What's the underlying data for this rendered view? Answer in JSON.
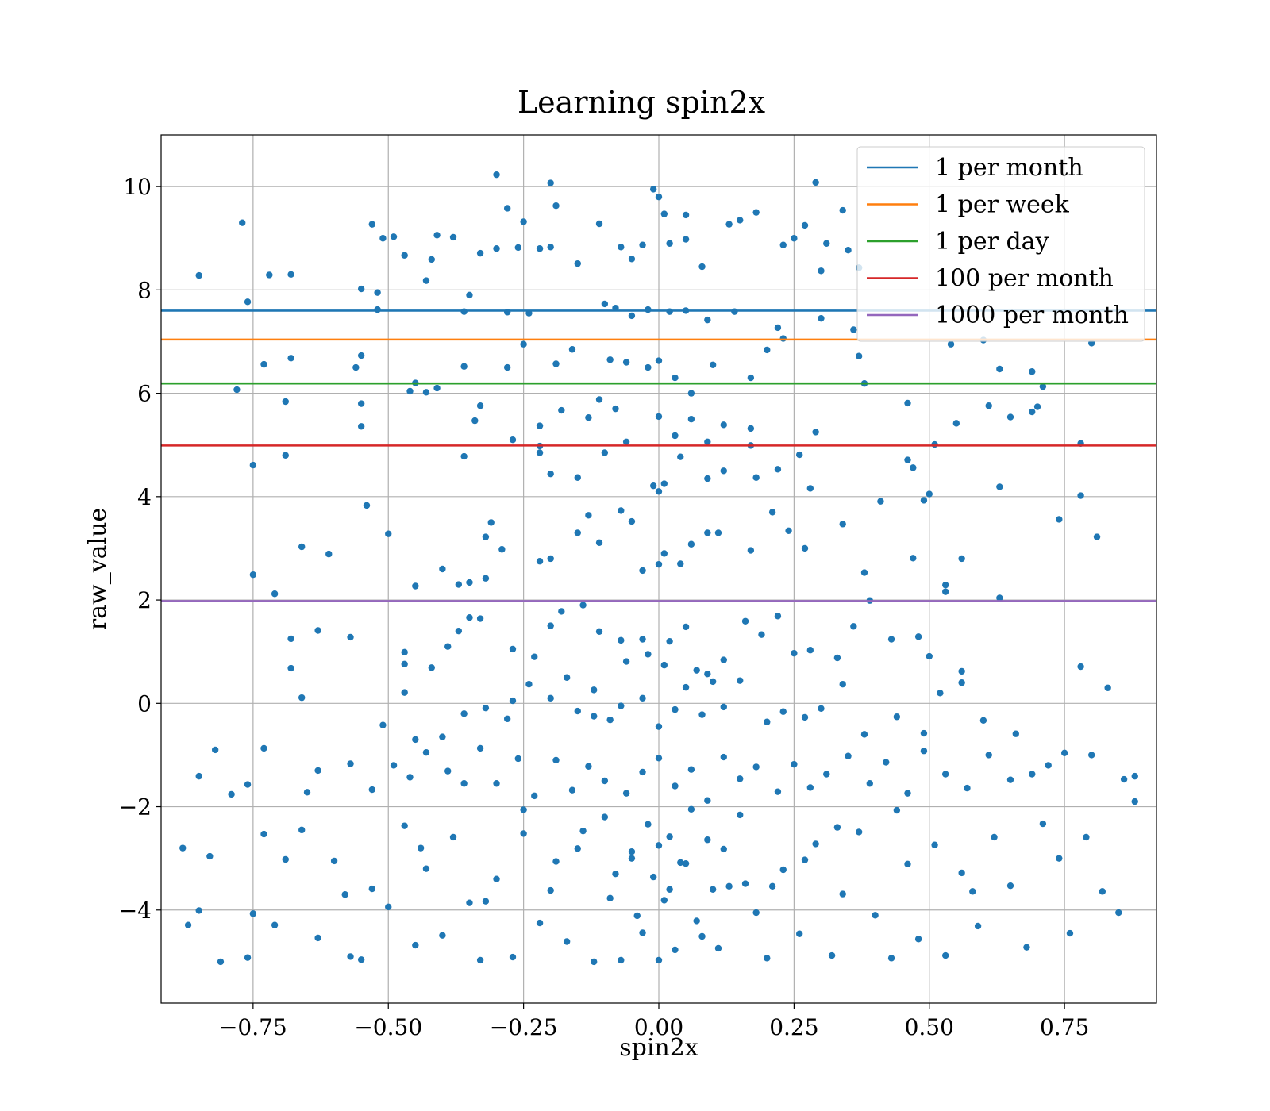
{
  "chart_data": {
    "type": "scatter",
    "title": "Learning spin2x",
    "xlabel": "spin2x",
    "ylabel": "raw_value",
    "xlim": [
      -0.92,
      0.92
    ],
    "ylim": [
      -5.8,
      11.0
    ],
    "grid": true,
    "x_ticks": [
      -0.75,
      -0.5,
      -0.25,
      0.0,
      0.25,
      0.5,
      0.75
    ],
    "x_tick_labels": [
      "−0.75",
      "−0.50",
      "−0.25",
      "0.00",
      "0.25",
      "0.50",
      "0.75"
    ],
    "y_ticks": [
      -4,
      -2,
      0,
      2,
      4,
      6,
      8,
      10
    ],
    "y_tick_labels": [
      "−4",
      "−2",
      "0",
      "2",
      "4",
      "6",
      "8",
      "10"
    ],
    "legend_position": "top-right",
    "marker_color": "#1f77b4",
    "thresholds": [
      {
        "name": "1 per month",
        "y": 7.6,
        "color": "#1f77b4"
      },
      {
        "name": "1 per week",
        "y": 7.04,
        "color": "#ff7f0e"
      },
      {
        "name": "1 per day",
        "y": 6.19,
        "color": "#2ca02c"
      },
      {
        "name": "100 per month",
        "y": 4.99,
        "color": "#d62728"
      },
      {
        "name": "1000 per month",
        "y": 1.98,
        "color": "#9467bd"
      }
    ],
    "points": [
      [
        -0.77,
        9.3
      ],
      [
        -0.76,
        7.77
      ],
      [
        -0.85,
        8.28
      ],
      [
        -0.53,
        9.27
      ],
      [
        -0.51,
        9.0
      ],
      [
        -0.49,
        9.03
      ],
      [
        -0.55,
        8.02
      ],
      [
        -0.52,
        7.95
      ],
      [
        -0.52,
        7.62
      ],
      [
        -0.72,
        8.29
      ],
      [
        -0.68,
        8.3
      ],
      [
        -0.3,
        10.23
      ],
      [
        -0.2,
        10.07
      ],
      [
        -0.19,
        9.63
      ],
      [
        -0.28,
        9.58
      ],
      [
        -0.25,
        9.32
      ],
      [
        -0.41,
        9.06
      ],
      [
        -0.38,
        9.02
      ],
      [
        -0.42,
        8.59
      ],
      [
        -0.47,
        8.67
      ],
      [
        -0.43,
        8.18
      ],
      [
        -0.35,
        7.9
      ],
      [
        -0.36,
        7.58
      ],
      [
        -0.28,
        7.57
      ],
      [
        -0.33,
        8.71
      ],
      [
        -0.3,
        8.8
      ],
      [
        -0.26,
        8.82
      ],
      [
        -0.22,
        8.8
      ],
      [
        -0.2,
        8.83
      ],
      [
        -0.24,
        7.55
      ],
      [
        -0.15,
        8.51
      ],
      [
        -0.11,
        9.28
      ],
      [
        -0.07,
        8.83
      ],
      [
        -0.05,
        8.6
      ],
      [
        -0.03,
        8.87
      ],
      [
        -0.01,
        9.95
      ],
      [
        0.0,
        9.8
      ],
      [
        0.01,
        9.47
      ],
      [
        0.05,
        9.45
      ],
      [
        0.02,
        8.9
      ],
      [
        0.05,
        8.98
      ],
      [
        0.08,
        8.45
      ],
      [
        0.13,
        9.27
      ],
      [
        0.15,
        9.35
      ],
      [
        0.18,
        9.5
      ],
      [
        0.23,
        8.87
      ],
      [
        0.25,
        9.0
      ],
      [
        0.27,
        9.25
      ],
      [
        0.29,
        10.08
      ],
      [
        0.31,
        8.9
      ],
      [
        0.34,
        9.54
      ],
      [
        0.3,
        8.37
      ],
      [
        0.35,
        8.77
      ],
      [
        0.37,
        8.43
      ],
      [
        0.3,
        7.45
      ],
      [
        0.36,
        7.23
      ],
      [
        -0.1,
        7.73
      ],
      [
        -0.08,
        7.65
      ],
      [
        -0.05,
        7.5
      ],
      [
        -0.02,
        7.62
      ],
      [
        0.02,
        7.58
      ],
      [
        0.05,
        7.6
      ],
      [
        0.09,
        7.42
      ],
      [
        0.14,
        7.58
      ],
      [
        -0.68,
        6.68
      ],
      [
        -0.73,
        6.56
      ],
      [
        -0.56,
        6.5
      ],
      [
        -0.55,
        6.73
      ],
      [
        -0.46,
        6.04
      ],
      [
        -0.45,
        6.2
      ],
      [
        -0.43,
        6.02
      ],
      [
        -0.41,
        6.1
      ],
      [
        -0.36,
        6.52
      ],
      [
        -0.28,
        6.5
      ],
      [
        -0.25,
        6.95
      ],
      [
        -0.19,
        6.57
      ],
      [
        -0.16,
        6.85
      ],
      [
        -0.09,
        6.65
      ],
      [
        -0.06,
        6.6
      ],
      [
        -0.02,
        6.5
      ],
      [
        0.0,
        6.63
      ],
      [
        0.03,
        6.3
      ],
      [
        0.06,
        6.0
      ],
      [
        0.1,
        6.55
      ],
      [
        0.17,
        6.3
      ],
      [
        0.2,
        6.84
      ],
      [
        0.23,
        7.06
      ],
      [
        0.22,
        7.27
      ],
      [
        0.37,
        6.72
      ],
      [
        0.38,
        6.19
      ],
      [
        0.6,
        7.03
      ],
      [
        0.63,
        6.47
      ],
      [
        0.69,
        6.42
      ],
      [
        0.71,
        6.13
      ],
      [
        0.8,
        6.97
      ],
      [
        0.54,
        6.95
      ],
      [
        -0.78,
        6.07
      ],
      [
        -0.69,
        5.84
      ],
      [
        -0.55,
        5.8
      ],
      [
        -0.55,
        5.36
      ],
      [
        -0.33,
        5.76
      ],
      [
        -0.34,
        5.47
      ],
      [
        -0.27,
        5.1
      ],
      [
        -0.22,
        5.37
      ],
      [
        -0.18,
        5.67
      ],
      [
        -0.13,
        5.53
      ],
      [
        -0.11,
        5.88
      ],
      [
        -0.08,
        5.7
      ],
      [
        -0.06,
        5.06
      ],
      [
        -0.1,
        4.85
      ],
      [
        0.0,
        5.55
      ],
      [
        0.03,
        5.18
      ],
      [
        0.06,
        5.5
      ],
      [
        0.09,
        5.06
      ],
      [
        0.12,
        5.39
      ],
      [
        0.17,
        5.32
      ],
      [
        0.17,
        4.99
      ],
      [
        0.29,
        5.25
      ],
      [
        0.46,
        5.81
      ],
      [
        0.51,
        5.01
      ],
      [
        0.55,
        5.42
      ],
      [
        0.61,
        5.76
      ],
      [
        0.65,
        5.54
      ],
      [
        0.7,
        5.74
      ],
      [
        0.69,
        5.64
      ],
      [
        0.78,
        5.03
      ],
      [
        -0.75,
        4.61
      ],
      [
        -0.69,
        4.8
      ],
      [
        -0.36,
        4.78
      ],
      [
        -0.22,
        4.98
      ],
      [
        -0.22,
        4.85
      ],
      [
        -0.2,
        4.44
      ],
      [
        -0.15,
        4.37
      ],
      [
        -0.01,
        4.21
      ],
      [
        0.01,
        4.25
      ],
      [
        0.0,
        4.1
      ],
      [
        0.04,
        4.77
      ],
      [
        0.09,
        4.35
      ],
      [
        0.12,
        4.5
      ],
      [
        0.18,
        4.37
      ],
      [
        0.22,
        4.53
      ],
      [
        0.26,
        4.81
      ],
      [
        0.28,
        4.16
      ],
      [
        0.41,
        3.91
      ],
      [
        0.46,
        4.71
      ],
      [
        0.47,
        4.56
      ],
      [
        0.49,
        3.93
      ],
      [
        0.5,
        4.05
      ],
      [
        0.63,
        4.19
      ],
      [
        0.74,
        3.56
      ],
      [
        0.78,
        4.02
      ],
      [
        0.81,
        3.22
      ],
      [
        -0.54,
        3.83
      ],
      [
        -0.5,
        3.28
      ],
      [
        -0.66,
        3.03
      ],
      [
        -0.61,
        2.89
      ],
      [
        -0.75,
        2.49
      ],
      [
        -0.71,
        2.12
      ],
      [
        -0.45,
        2.27
      ],
      [
        -0.4,
        2.6
      ],
      [
        -0.37,
        2.3
      ],
      [
        -0.35,
        2.34
      ],
      [
        -0.32,
        2.42
      ],
      [
        -0.32,
        3.22
      ],
      [
        -0.31,
        3.5
      ],
      [
        -0.29,
        2.98
      ],
      [
        -0.22,
        2.75
      ],
      [
        -0.2,
        2.8
      ],
      [
        -0.15,
        3.3
      ],
      [
        -0.13,
        3.64
      ],
      [
        -0.11,
        3.11
      ],
      [
        -0.07,
        3.73
      ],
      [
        -0.05,
        3.52
      ],
      [
        -0.03,
        2.57
      ],
      [
        0.0,
        2.69
      ],
      [
        0.01,
        2.9
      ],
      [
        0.04,
        2.7
      ],
      [
        0.06,
        3.08
      ],
      [
        0.09,
        3.3
      ],
      [
        0.11,
        3.3
      ],
      [
        0.17,
        2.96
      ],
      [
        0.21,
        3.7
      ],
      [
        0.24,
        3.34
      ],
      [
        0.27,
        3.0
      ],
      [
        0.34,
        3.47
      ],
      [
        0.38,
        2.53
      ],
      [
        0.39,
        1.99
      ],
      [
        0.47,
        2.81
      ],
      [
        0.53,
        2.29
      ],
      [
        0.53,
        2.16
      ],
      [
        0.56,
        2.8
      ],
      [
        0.63,
        2.04
      ],
      [
        -0.68,
        1.25
      ],
      [
        -0.68,
        0.68
      ],
      [
        -0.63,
        1.41
      ],
      [
        -0.57,
        1.28
      ],
      [
        -0.47,
        0.99
      ],
      [
        -0.47,
        0.76
      ],
      [
        -0.47,
        0.21
      ],
      [
        -0.42,
        0.69
      ],
      [
        -0.39,
        1.1
      ],
      [
        -0.37,
        1.4
      ],
      [
        -0.35,
        1.66
      ],
      [
        -0.33,
        1.64
      ],
      [
        -0.27,
        1.05
      ],
      [
        -0.23,
        0.9
      ],
      [
        -0.2,
        1.5
      ],
      [
        -0.18,
        1.78
      ],
      [
        -0.14,
        1.9
      ],
      [
        -0.11,
        1.39
      ],
      [
        -0.07,
        1.22
      ],
      [
        -0.06,
        0.81
      ],
      [
        -0.03,
        1.24
      ],
      [
        -0.02,
        0.95
      ],
      [
        0.01,
        0.74
      ],
      [
        0.02,
        1.2
      ],
      [
        0.05,
        1.48
      ],
      [
        0.07,
        0.64
      ],
      [
        0.09,
        0.57
      ],
      [
        0.12,
        0.84
      ],
      [
        0.16,
        1.59
      ],
      [
        0.19,
        1.33
      ],
      [
        0.22,
        1.69
      ],
      [
        0.25,
        0.97
      ],
      [
        0.28,
        1.03
      ],
      [
        0.33,
        0.88
      ],
      [
        0.36,
        1.49
      ],
      [
        0.43,
        1.24
      ],
      [
        0.48,
        1.29
      ],
      [
        0.5,
        0.91
      ],
      [
        0.56,
        0.62
      ],
      [
        0.56,
        0.4
      ],
      [
        0.78,
        0.71
      ],
      [
        0.83,
        0.3
      ],
      [
        -0.66,
        0.11
      ],
      [
        -0.45,
        -0.7
      ],
      [
        -0.51,
        -0.42
      ],
      [
        -0.4,
        -0.65
      ],
      [
        -0.36,
        -0.2
      ],
      [
        -0.32,
        -0.09
      ],
      [
        -0.28,
        -0.3
      ],
      [
        -0.27,
        0.05
      ],
      [
        -0.24,
        0.37
      ],
      [
        -0.2,
        0.1
      ],
      [
        -0.17,
        0.5
      ],
      [
        -0.15,
        -0.15
      ],
      [
        -0.12,
        0.26
      ],
      [
        -0.09,
        -0.32
      ],
      [
        -0.07,
        -0.05
      ],
      [
        -0.03,
        0.1
      ],
      [
        0.0,
        -0.45
      ],
      [
        0.03,
        -0.12
      ],
      [
        0.05,
        0.31
      ],
      [
        0.08,
        -0.22
      ],
      [
        0.1,
        0.42
      ],
      [
        0.12,
        -0.07
      ],
      [
        0.15,
        0.44
      ],
      [
        0.2,
        -0.36
      ],
      [
        0.23,
        -0.16
      ],
      [
        0.27,
        -0.27
      ],
      [
        0.3,
        -0.1
      ],
      [
        0.34,
        0.37
      ],
      [
        0.38,
        -0.6
      ],
      [
        0.44,
        -0.26
      ],
      [
        0.49,
        -0.58
      ],
      [
        0.52,
        0.2
      ],
      [
        0.6,
        -0.33
      ],
      [
        0.66,
        -0.59
      ],
      [
        -0.82,
        -0.9
      ],
      [
        -0.85,
        -1.41
      ],
      [
        -0.76,
        -1.57
      ],
      [
        -0.73,
        -0.87
      ],
      [
        -0.79,
        -1.76
      ],
      [
        -0.65,
        -1.72
      ],
      [
        -0.63,
        -1.3
      ],
      [
        -0.57,
        -1.17
      ],
      [
        -0.53,
        -1.67
      ],
      [
        -0.49,
        -1.2
      ],
      [
        -0.46,
        -1.43
      ],
      [
        -0.43,
        -0.95
      ],
      [
        -0.39,
        -1.31
      ],
      [
        -0.36,
        -1.55
      ],
      [
        -0.33,
        -0.87
      ],
      [
        -0.3,
        -1.55
      ],
      [
        -0.26,
        -1.07
      ],
      [
        -0.23,
        -1.79
      ],
      [
        -0.19,
        -1.1
      ],
      [
        -0.16,
        -1.68
      ],
      [
        -0.13,
        -1.22
      ],
      [
        -0.1,
        -1.5
      ],
      [
        -0.06,
        -1.74
      ],
      [
        -0.03,
        -1.33
      ],
      [
        0.0,
        -1.06
      ],
      [
        0.03,
        -1.6
      ],
      [
        0.06,
        -1.28
      ],
      [
        0.09,
        -1.88
      ],
      [
        0.12,
        -1.04
      ],
      [
        0.15,
        -1.46
      ],
      [
        0.18,
        -1.23
      ],
      [
        0.22,
        -1.71
      ],
      [
        0.25,
        -1.18
      ],
      [
        0.28,
        -1.63
      ],
      [
        0.31,
        -1.37
      ],
      [
        0.35,
        -1.02
      ],
      [
        0.39,
        -1.55
      ],
      [
        0.42,
        -1.14
      ],
      [
        0.46,
        -1.74
      ],
      [
        0.49,
        -0.92
      ],
      [
        0.53,
        -1.37
      ],
      [
        0.57,
        -1.64
      ],
      [
        0.61,
        -1.0
      ],
      [
        0.65,
        -1.48
      ],
      [
        0.69,
        -1.37
      ],
      [
        0.72,
        -1.2
      ],
      [
        0.75,
        -0.96
      ],
      [
        0.8,
        -1.0
      ],
      [
        0.86,
        -1.47
      ],
      [
        0.88,
        -1.41
      ],
      [
        -0.88,
        -2.8
      ],
      [
        -0.87,
        -4.29
      ],
      [
        -0.85,
        -4.01
      ],
      [
        -0.83,
        -2.96
      ],
      [
        -0.81,
        -5.0
      ],
      [
        -0.76,
        -4.92
      ],
      [
        -0.75,
        -4.07
      ],
      [
        -0.73,
        -2.53
      ],
      [
        -0.71,
        -4.29
      ],
      [
        -0.69,
        -3.02
      ],
      [
        -0.66,
        -2.45
      ],
      [
        -0.63,
        -4.54
      ],
      [
        -0.6,
        -3.05
      ],
      [
        -0.57,
        -4.9
      ],
      [
        -0.55,
        -4.96
      ],
      [
        -0.53,
        -3.59
      ],
      [
        -0.5,
        -3.94
      ],
      [
        -0.47,
        -2.37
      ],
      [
        -0.45,
        -4.68
      ],
      [
        -0.43,
        -3.2
      ],
      [
        -0.4,
        -4.49
      ],
      [
        -0.38,
        -2.59
      ],
      [
        -0.35,
        -3.86
      ],
      [
        -0.33,
        -4.97
      ],
      [
        -0.3,
        -3.4
      ],
      [
        -0.27,
        -4.91
      ],
      [
        -0.25,
        -2.52
      ],
      [
        -0.22,
        -4.25
      ],
      [
        -0.19,
        -3.06
      ],
      [
        -0.17,
        -4.61
      ],
      [
        -0.14,
        -2.47
      ],
      [
        -0.12,
        -5.0
      ],
      [
        -0.09,
        -3.77
      ],
      [
        -0.07,
        -4.97
      ],
      [
        -0.05,
        -2.87
      ],
      [
        -0.03,
        -4.44
      ],
      [
        -0.01,
        -3.36
      ],
      [
        0.0,
        -4.97
      ],
      [
        0.01,
        -3.81
      ],
      [
        0.02,
        -2.58
      ],
      [
        0.03,
        -4.77
      ],
      [
        0.05,
        -3.1
      ],
      [
        0.07,
        -4.21
      ],
      [
        0.09,
        -2.64
      ],
      [
        0.11,
        -4.74
      ],
      [
        0.13,
        -3.54
      ],
      [
        0.15,
        -2.16
      ],
      [
        0.18,
        -4.05
      ],
      [
        0.2,
        -4.93
      ],
      [
        0.23,
        -3.22
      ],
      [
        0.26,
        -4.46
      ],
      [
        0.29,
        -2.72
      ],
      [
        0.32,
        -4.88
      ],
      [
        0.34,
        -3.69
      ],
      [
        0.37,
        -2.49
      ],
      [
        0.4,
        -4.1
      ],
      [
        0.43,
        -4.93
      ],
      [
        0.46,
        -3.11
      ],
      [
        0.48,
        -4.56
      ],
      [
        0.51,
        -2.74
      ],
      [
        0.53,
        -4.88
      ],
      [
        0.56,
        -3.28
      ],
      [
        0.59,
        -4.31
      ],
      [
        0.62,
        -2.59
      ],
      [
        0.65,
        -3.53
      ],
      [
        0.68,
        -4.72
      ],
      [
        0.71,
        -2.33
      ],
      [
        0.74,
        -3.0
      ],
      [
        0.76,
        -4.45
      ],
      [
        0.79,
        -2.59
      ],
      [
        0.82,
        -3.64
      ],
      [
        0.85,
        -4.05
      ],
      [
        0.88,
        -1.9
      ],
      [
        -0.12,
        -0.25
      ],
      [
        -0.02,
        -2.34
      ],
      [
        0.04,
        -3.08
      ],
      [
        -0.1,
        -2.2
      ],
      [
        0.12,
        -2.82
      ],
      [
        -0.2,
        -3.62
      ],
      [
        0.21,
        -3.54
      ],
      [
        -0.05,
        -3.0
      ],
      [
        0.06,
        -2.05
      ],
      [
        -0.15,
        -2.81
      ],
      [
        0.16,
        -3.49
      ],
      [
        -0.25,
        -2.06
      ],
      [
        0.27,
        -3.03
      ],
      [
        -0.32,
        -3.83
      ],
      [
        0.33,
        -2.4
      ],
      [
        0.0,
        -2.75
      ],
      [
        0.02,
        -3.6
      ],
      [
        -0.04,
        -4.11
      ],
      [
        0.08,
        -4.51
      ],
      [
        -0.08,
        -3.3
      ],
      [
        0.1,
        -3.6
      ],
      [
        0.44,
        -2.07
      ],
      [
        -0.44,
        -2.8
      ],
      [
        0.58,
        -3.64
      ],
      [
        -0.58,
        -3.7
      ]
    ]
  }
}
